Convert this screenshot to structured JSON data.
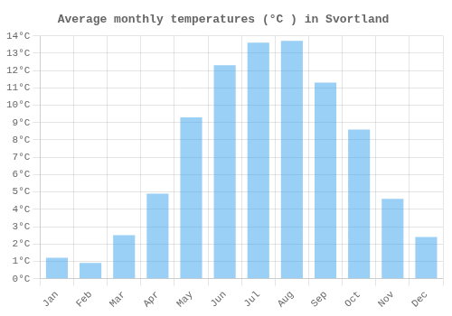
{
  "chart_data": {
    "type": "bar",
    "title": "Average monthly temperatures (°C ) in Svortland",
    "categories": [
      "Jan",
      "Feb",
      "Mar",
      "Apr",
      "May",
      "Jun",
      "Jul",
      "Aug",
      "Sep",
      "Oct",
      "Nov",
      "Dec"
    ],
    "values": [
      1.2,
      0.9,
      2.5,
      4.9,
      9.3,
      12.3,
      13.6,
      13.7,
      11.3,
      8.6,
      4.6,
      2.4
    ],
    "ylim": [
      0,
      14
    ],
    "yticks": [
      {
        "value": 0,
        "label": "0°C"
      },
      {
        "value": 1,
        "label": "1°C"
      },
      {
        "value": 2,
        "label": "2°C"
      },
      {
        "value": 3,
        "label": "3°C"
      },
      {
        "value": 4,
        "label": "4°C"
      },
      {
        "value": 5,
        "label": "5°C"
      },
      {
        "value": 6,
        "label": "6°C"
      },
      {
        "value": 7,
        "label": "7°C"
      },
      {
        "value": 8,
        "label": "8°C"
      },
      {
        "value": 9,
        "label": "9°C"
      },
      {
        "value": 10,
        "label": "10°C"
      },
      {
        "value": 11,
        "label": "11°C"
      },
      {
        "value": 12,
        "label": "12°C"
      },
      {
        "value": 13,
        "label": "13°C"
      },
      {
        "value": 14,
        "label": "14°C"
      }
    ],
    "grid": true
  }
}
